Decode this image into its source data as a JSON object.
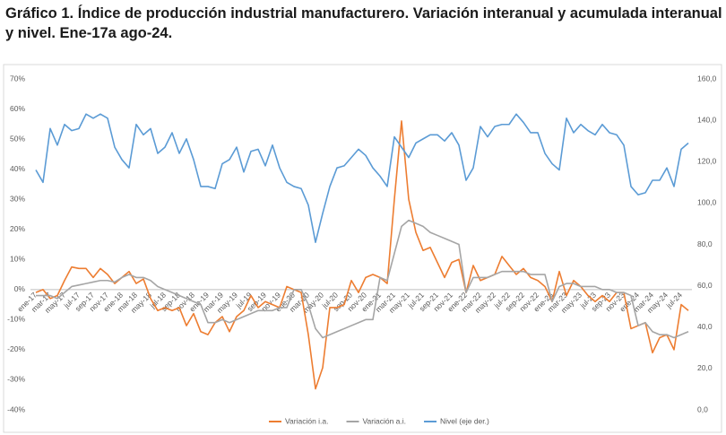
{
  "chart_data": {
    "type": "line",
    "title": "Gráfico 1. Índice de producción industrial manufacturero. Variación interanual y acumulada interanual y nivel. Ene-17a ago-24.",
    "categories": [
      "ene-17",
      null,
      "mar-17",
      null,
      "may-17",
      null,
      "jul-17",
      null,
      "sep-17",
      null,
      "nov-17",
      null,
      "ene-18",
      null,
      "mar-18",
      null,
      "may-18",
      null,
      "jul-18",
      null,
      "sep-18",
      null,
      "nov-18",
      null,
      "ene-19",
      null,
      "mar-19",
      null,
      "may-19",
      null,
      "jul-19",
      null,
      "sep-19",
      null,
      "nov-19",
      null,
      "ene-20",
      null,
      "mar-20",
      null,
      "may-20",
      null,
      "jul-20",
      null,
      "sep-20",
      null,
      "nov-20",
      null,
      "ene-21",
      null,
      "mar-21",
      null,
      "may-21",
      null,
      "jul-21",
      null,
      "sep-21",
      null,
      "nov-21",
      null,
      "ene-22",
      null,
      "mar-22",
      null,
      "may-22",
      null,
      "jul-22",
      null,
      "sep-22",
      null,
      "nov-22",
      null,
      "ene-23",
      null,
      "mar-23",
      null,
      "may-23",
      null,
      "jul-23",
      null,
      "sep-23",
      null,
      "nov-23",
      null,
      "ene-24",
      null,
      "mar-24",
      null,
      "may-24",
      null,
      "jul-24",
      null
    ],
    "series": [
      {
        "name": "Variación i.a.",
        "color": "#ed7d31",
        "values": [
          -1,
          0,
          -3,
          -2,
          3,
          7.5,
          7,
          7,
          4,
          7,
          5,
          2,
          4,
          6,
          2,
          3.5,
          -3,
          -7,
          -6,
          -7,
          -6,
          -12,
          -8,
          -14,
          -15,
          -11,
          -9,
          -14,
          -9,
          -7,
          -2,
          -6,
          -4,
          -5,
          -6,
          1,
          0,
          -1,
          -15,
          -33,
          -26,
          -6,
          -6,
          -5,
          3,
          -1,
          4,
          5,
          4,
          2,
          30,
          56,
          30,
          19,
          13,
          14,
          9,
          4,
          9,
          10,
          -1,
          8,
          3,
          4,
          5,
          11,
          8,
          5,
          7,
          4,
          3,
          1,
          -4,
          6,
          -2,
          3,
          1,
          -2,
          -4,
          -2,
          -4,
          -1,
          -1,
          -13,
          -12,
          -11,
          -21,
          -16,
          -15,
          -20,
          -5,
          -7
        ]
      },
      {
        "name": "Variación a.i.",
        "color": "#a5a5a5",
        "values": [
          -2,
          -2,
          -2,
          -3,
          -1,
          1,
          1.5,
          2,
          2.5,
          3,
          3,
          2.5,
          4,
          5,
          4,
          4,
          3,
          1,
          0,
          -1,
          -2,
          -3,
          -4,
          -5,
          -11,
          -11,
          -10,
          -11,
          -10,
          -9,
          -8,
          -7,
          -7,
          -7,
          -6,
          -6,
          0,
          0,
          -5,
          -13,
          -16,
          -15,
          -14,
          -13,
          -12,
          -11,
          -10,
          -10,
          4,
          3,
          12,
          21,
          23,
          22,
          21,
          19,
          18,
          17,
          16,
          15,
          -1,
          4,
          4,
          4,
          5,
          6,
          6,
          6,
          6,
          5,
          5,
          5,
          -4,
          1,
          2,
          2,
          1,
          1,
          1,
          0,
          0,
          -1,
          -1,
          -2,
          -12,
          -11,
          -14,
          -15,
          -15,
          -16,
          -15,
          -14
        ]
      },
      {
        "name": "Nivel (eje der.)",
        "color": "#5b9bd5",
        "axis": "y2",
        "values": [
          116,
          110,
          136,
          128,
          138,
          135,
          136,
          143,
          141,
          143,
          141,
          127,
          121,
          117,
          138,
          133,
          136,
          124,
          127,
          134,
          124,
          131,
          121,
          108,
          108,
          107,
          119,
          121,
          127,
          115,
          125,
          126,
          118,
          128,
          117,
          110,
          108,
          107,
          99,
          81,
          95,
          108,
          117,
          118,
          122,
          126,
          123,
          117,
          113,
          108,
          132,
          127,
          122,
          129,
          131,
          133,
          133,
          130,
          134,
          128,
          111,
          117,
          137,
          132,
          137,
          138,
          138,
          143,
          139,
          134,
          134,
          124,
          119,
          116,
          141,
          134,
          138,
          135,
          133,
          138,
          134,
          133,
          128,
          108,
          104,
          105,
          111,
          111,
          117,
          108,
          126,
          129
        ]
      }
    ],
    "ylim": [
      -40,
      70
    ],
    "yticks": [
      {
        "value": -40,
        "label": "-40%"
      },
      {
        "value": -30,
        "label": "-30%"
      },
      {
        "value": -20,
        "label": "-20%"
      },
      {
        "value": -10,
        "label": "-10%"
      },
      {
        "value": 0,
        "label": "0%"
      },
      {
        "value": 10,
        "label": "10%"
      },
      {
        "value": 20,
        "label": "20%"
      },
      {
        "value": 30,
        "label": "30%"
      },
      {
        "value": 40,
        "label": "40%"
      },
      {
        "value": 50,
        "label": "50%"
      },
      {
        "value": 60,
        "label": "60%"
      },
      {
        "value": 70,
        "label": "70%"
      }
    ],
    "y2lim": [
      0,
      160
    ],
    "y2ticks": [
      {
        "value": 0,
        "label": "0,0"
      },
      {
        "value": 20,
        "label": "20,0"
      },
      {
        "value": 40,
        "label": "40,0"
      },
      {
        "value": 60,
        "label": "60,0"
      },
      {
        "value": 80,
        "label": "80,0"
      },
      {
        "value": 100,
        "label": "100,0"
      },
      {
        "value": 120,
        "label": "120,0"
      },
      {
        "value": 140,
        "label": "140,0"
      },
      {
        "value": 160,
        "label": "160,0"
      }
    ],
    "grid": false,
    "legend": "bottom"
  }
}
